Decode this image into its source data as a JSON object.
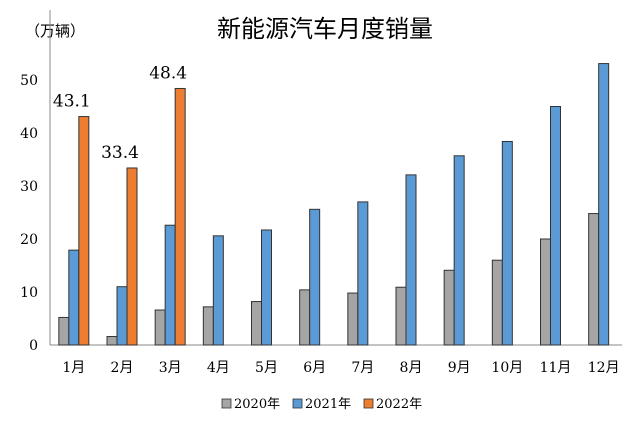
{
  "chart_data": {
    "type": "bar",
    "title": "新能源汽车月度销量",
    "ylabel": "（万辆）",
    "xlabel": "",
    "ylim": [
      0,
      50
    ],
    "yticks": [
      "0",
      "10",
      "20",
      "30",
      "40",
      "50"
    ],
    "categories": [
      "1月",
      "2月",
      "3月",
      "4月",
      "5月",
      "6月",
      "7月",
      "8月",
      "9月",
      "10月",
      "11月",
      "12月"
    ],
    "series": [
      {
        "name": "2020年",
        "color": "#a5a5a5",
        "values": [
          5.2,
          1.6,
          6.6,
          7.2,
          8.2,
          10.4,
          9.8,
          10.9,
          14.1,
          16.0,
          20.0,
          24.8
        ]
      },
      {
        "name": "2021年",
        "color": "#5b9bd5",
        "values": [
          17.9,
          11.0,
          22.6,
          20.6,
          21.7,
          25.6,
          27.0,
          32.1,
          35.7,
          38.4,
          45.0,
          53.1
        ]
      },
      {
        "name": "2022年",
        "color": "#ed7d31",
        "values": [
          43.1,
          33.4,
          48.4,
          null,
          null,
          null,
          null,
          null,
          null,
          null,
          null,
          null
        ]
      }
    ],
    "data_labels": [
      "43.1",
      "33.4",
      "48.4"
    ],
    "legend_position": "bottom",
    "grid": false
  }
}
